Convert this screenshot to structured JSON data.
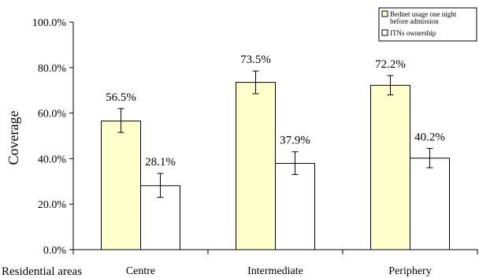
{
  "chart_data": {
    "type": "bar",
    "ylabel": "Coverage",
    "xlabel": "Residential areas",
    "ylim": [
      0,
      100
    ],
    "ytick_labels": [
      "0.0%",
      "20.0%",
      "40.0%",
      "60.0%",
      "80.0%",
      "100.0%"
    ],
    "categories": [
      "Centre",
      "Intermediate",
      "Periphery"
    ],
    "series": [
      {
        "name": "Bednet usage one night before admission",
        "values": [
          56.5,
          73.5,
          72.2
        ],
        "labels": [
          "56.5%",
          "73.5%",
          "72.2%"
        ],
        "error_low": [
          51.5,
          68.5,
          68.0
        ],
        "error_high": [
          62.0,
          78.5,
          76.5
        ],
        "color": "#ffffcc"
      },
      {
        "name": "ITNs ownership",
        "values": [
          28.1,
          37.9,
          40.2
        ],
        "labels": [
          "28.1%",
          "37.9%",
          "40.2%"
        ],
        "error_low": [
          23.0,
          33.0,
          36.0
        ],
        "error_high": [
          33.5,
          43.0,
          44.5
        ],
        "color": "#ffffff"
      }
    ],
    "legend": {
      "position": "top-right",
      "lines": [
        [
          "Bednet usage one night",
          "before admission"
        ],
        [
          "ITNs ownership"
        ]
      ]
    },
    "grid": false
  }
}
